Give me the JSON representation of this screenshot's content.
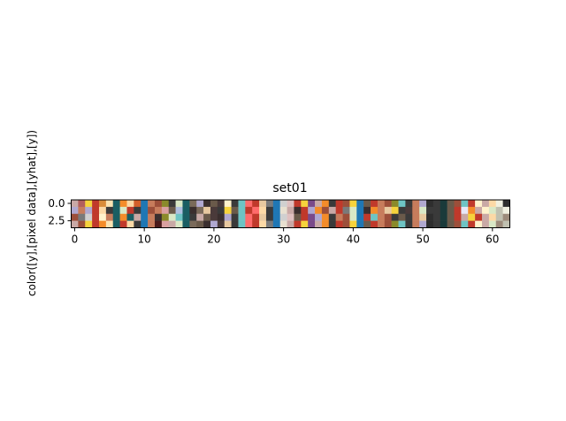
{
  "chart_data": {
    "type": "heatmap",
    "title": "set01",
    "xlabel": "",
    "ylabel": "color([y],[pixel data],[yhat],[y])",
    "xlim": [
      -0.5,
      62.5
    ],
    "ylim": [
      3.5,
      -0.5
    ],
    "x_ticks": [
      0,
      10,
      20,
      30,
      40,
      50,
      60
    ],
    "y_ticks": [
      "0.0",
      "2.5"
    ],
    "grid": false,
    "legend": "none",
    "n_rows": 4,
    "n_cols": 63,
    "rows": [
      [
        "#c9a9a6",
        "#b25f5e",
        "#f6d33c",
        "#c0392b",
        "#d98c3a",
        "#fbe3b2",
        "#1a5e63",
        "#f48c2a",
        "#fcd9a6",
        "#d35f2a",
        "#1f77b4",
        "#c77c5c",
        "#9c4f3a",
        "#8a8a2a",
        "#3a3a3a",
        "#d9e8c6",
        "#1a5e63",
        "#7a6a5a",
        "#b0a8d0",
        "#3a2e2e",
        "#6a5a4a",
        "#4a3a3a",
        "#fff2cc",
        "#3a3a3a",
        "#6ec4c4",
        "#ff6b6b",
        "#c0392b",
        "#e8c9a0",
        "#7a7a7a",
        "#1f77b4",
        "#d0d0d0",
        "#e0c0c0",
        "#c0392b",
        "#f6d33c",
        "#7a4a8a",
        "#c9a9a6",
        "#f48c2a",
        "#3a3a3a",
        "#c0392b",
        "#9c4f3a",
        "#f6d33c",
        "#1f77b4",
        "#6a5a4a",
        "#c0392b",
        "#c77c5c",
        "#9c4f3a",
        "#8a8a2a",
        "#6ec4c4",
        "#3a3a3a",
        "#c77c5c",
        "#b0a8d0",
        "#2e2e2e",
        "#3a3a3a",
        "#1a3a3a",
        "#6a5a4a",
        "#9c4f3a",
        "#6ec4c4",
        "#c0392b",
        "#fff2cc",
        "#c9a9a6",
        "#fcd9a6",
        "#f0f0e0",
        "#2e2e2e"
      ],
      [
        "#b0a8d0",
        "#c77c5c",
        "#b0a8d0",
        "#c0392b",
        "#fcd9a6",
        "#3a3a3a",
        "#1a5e63",
        "#d9e8c6",
        "#c0392b",
        "#3a3a3a",
        "#1f77b4",
        "#9c4f3a",
        "#c77c5c",
        "#d9a0a0",
        "#6a5a4a",
        "#b0c0e0",
        "#1a5e63",
        "#3a2e2e",
        "#7a6a5a",
        "#e8c9a0",
        "#4a3a3a",
        "#3a3a3a",
        "#f6d33c",
        "#6a5a4a",
        "#6ec4c4",
        "#c0392b",
        "#ff6b6b",
        "#fcd9a6",
        "#3a3a3a",
        "#1f77b4",
        "#e8e0d0",
        "#c9a9a6",
        "#3a2e2e",
        "#c0392b",
        "#b0a8d0",
        "#f48c2a",
        "#9c4f3a",
        "#c9a9a6",
        "#c0392b",
        "#7a7a7a",
        "#d9e8c6",
        "#1f77b4",
        "#3a2e2e",
        "#f48c2a",
        "#c77c5c",
        "#e8c9a0",
        "#f6d33c",
        "#3a3a3a",
        "#4a3a3a",
        "#c77c5c",
        "#d9e8c6",
        "#3a3a3a",
        "#3a3a3a",
        "#1a3a3a",
        "#6a5a4a",
        "#c0392b",
        "#e8e8f8",
        "#f48c2a",
        "#c9a9a6",
        "#fff2cc",
        "#d9e8c6",
        "#c0c0b0",
        "#f0f0e0"
      ],
      [
        "#9c4f3a",
        "#7a7a7a",
        "#d0d0d0",
        "#c0392b",
        "#fff2cc",
        "#c77c5c",
        "#1a5e63",
        "#f48c2a",
        "#1a5e63",
        "#c9a9a6",
        "#1f77b4",
        "#c77c5c",
        "#3a2e2e",
        "#8a8a2a",
        "#d9e8c6",
        "#6ec4c4",
        "#1a5e63",
        "#3a3a3a",
        "#c9a9a6",
        "#6a5a4a",
        "#4a3a3a",
        "#3a2e2e",
        "#b0a8d0",
        "#3a3a3a",
        "#6ec4c4",
        "#ff6b6b",
        "#c0392b",
        "#e8c9a0",
        "#3a3a3a",
        "#1f77b4",
        "#d0d0d0",
        "#e0c0c0",
        "#6a5a4a",
        "#c0392b",
        "#7a4a8a",
        "#b0a8d0",
        "#f48c2a",
        "#3a3a3a",
        "#c77c5c",
        "#9c4f3a",
        "#d9e8c6",
        "#1f77b4",
        "#c0392b",
        "#6ec4c4",
        "#c77c5c",
        "#9c4f3a",
        "#3a3a3a",
        "#6a5a4a",
        "#3a3a3a",
        "#c77c5c",
        "#e8c9a0",
        "#2e2e2e",
        "#3a3a3a",
        "#1a3a3a",
        "#6a5a4a",
        "#c0392b",
        "#c9a9a6",
        "#f6d33c",
        "#c0392b",
        "#c9a9a6",
        "#fcd9a6",
        "#c0c0b0",
        "#9c8a7a"
      ],
      [
        "#c9a9a6",
        "#9c4f3a",
        "#f6d33c",
        "#c0392b",
        "#f48c2a",
        "#fbe3b2",
        "#1a5e63",
        "#c0392b",
        "#fcd9a6",
        "#3a3a3a",
        "#1f77b4",
        "#c77c5c",
        "#4a1a1a",
        "#d9a0a0",
        "#c9a9a6",
        "#d9e8c6",
        "#1a5e63",
        "#7a6a5a",
        "#6a5a4a",
        "#3a2e2e",
        "#b0a8d0",
        "#4a3a3a",
        "#e8c9a0",
        "#3a3a3a",
        "#6ec4c4",
        "#ff6b6b",
        "#c0392b",
        "#fcd9a6",
        "#7a7a7a",
        "#1f77b4",
        "#e8e0d0",
        "#c9a9a6",
        "#c0392b",
        "#f6d33c",
        "#7a4a8a",
        "#c9a9a6",
        "#f48c2a",
        "#3a3a3a",
        "#c0392b",
        "#9c4f3a",
        "#f6d33c",
        "#1f77b4",
        "#6a5a4a",
        "#c0392b",
        "#c77c5c",
        "#9c4f3a",
        "#8a8a2a",
        "#6ec4c4",
        "#3a3a3a",
        "#c77c5c",
        "#b0a8d0",
        "#2e2e2e",
        "#3a3a3a",
        "#1a3a3a",
        "#6a5a4a",
        "#9c4f3a",
        "#6ec4c4",
        "#c0392b",
        "#fff2cc",
        "#c9a9a6",
        "#d9e8c6",
        "#9c8a7a",
        "#c0c0b0"
      ]
    ]
  }
}
